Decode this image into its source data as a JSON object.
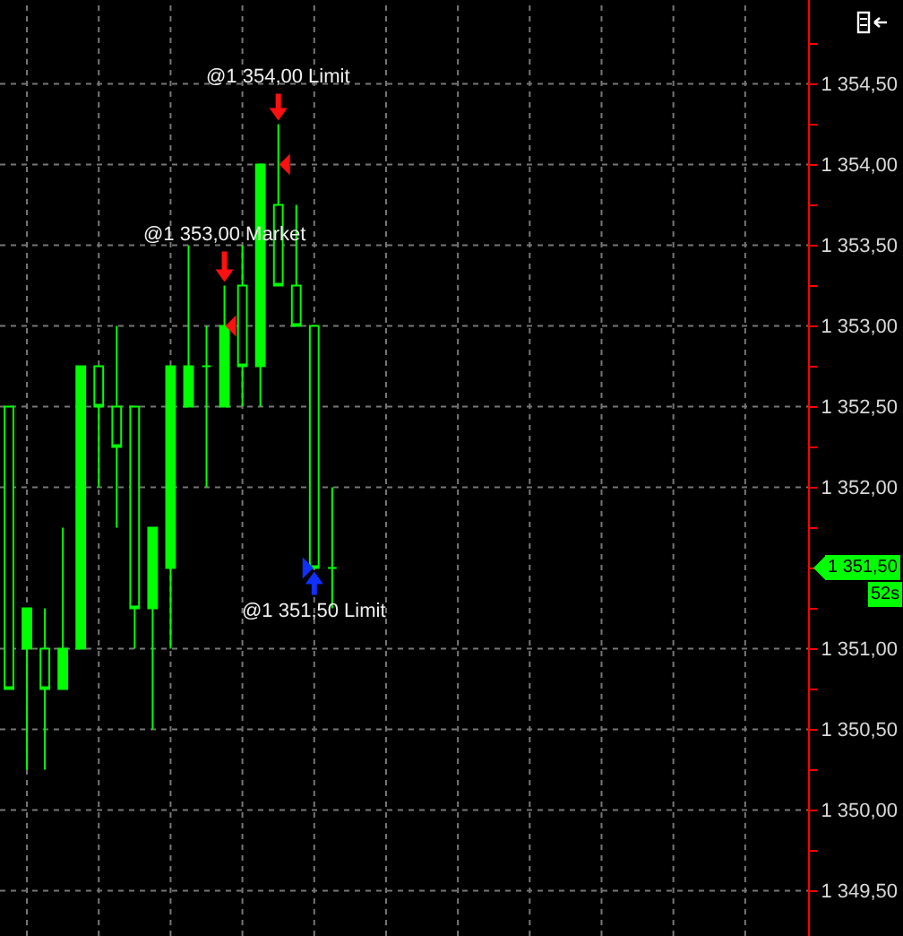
{
  "chart_data": {
    "type": "candlestick",
    "categories": [
      null,
      null,
      null,
      null,
      null,
      null,
      null,
      null,
      null,
      null,
      null,
      null,
      null,
      null,
      null,
      null,
      null,
      null,
      null,
      null,
      null,
      null,
      null,
      null,
      null,
      null,
      null,
      null,
      null,
      null,
      null,
      null,
      null,
      null,
      null,
      null,
      null,
      null,
      null,
      null,
      null,
      null,
      null,
      null,
      null
    ],
    "ohlc": [
      [
        1352.5,
        1352.5,
        1350.75,
        1350.75
      ],
      [
        1351.0,
        1351.25,
        1350.25,
        1351.25
      ],
      [
        1351.0,
        1351.25,
        1350.25,
        1350.75
      ],
      [
        1350.75,
        1351.75,
        1350.75,
        1351.0
      ],
      [
        1351.0,
        1352.75,
        1351.0,
        1352.75
      ],
      [
        1352.75,
        1352.75,
        1352.0,
        1352.5
      ],
      [
        1352.5,
        1353.0,
        1351.75,
        1352.25
      ],
      [
        1352.5,
        1352.5,
        1351.0,
        1351.25
      ],
      [
        1351.25,
        1351.75,
        1350.5,
        1351.75
      ],
      [
        1351.5,
        1352.75,
        1351.0,
        1352.75
      ],
      [
        1352.5,
        1353.5,
        1352.5,
        1352.75
      ],
      [
        1352.75,
        1353.0,
        1352.0,
        1352.75
      ],
      [
        1352.5,
        1353.25,
        1352.5,
        1353.0
      ],
      [
        1353.25,
        1353.5,
        1352.5,
        1352.75
      ],
      [
        1352.75,
        1354.0,
        1352.5,
        1354.0
      ],
      [
        1353.75,
        1354.25,
        1353.25,
        1353.25
      ],
      [
        1353.25,
        1353.75,
        1353.0,
        1353.0
      ],
      [
        1353.0,
        1353.0,
        1351.5,
        1351.5
      ],
      [
        1351.5,
        1352.0,
        1351.25,
        1351.5
      ],
      null,
      null,
      null,
      null,
      null,
      null,
      null,
      null,
      null,
      null,
      null,
      null,
      null,
      null,
      null,
      null,
      null,
      null,
      null,
      null,
      null,
      null,
      null,
      null,
      null,
      null
    ],
    "color": "#00ff00",
    "ylim": [
      1349.22,
      1355.02
    ],
    "yticks": [
      {
        "value": 1349.5,
        "label": "1 349,50"
      },
      {
        "value": 1349.75,
        "label": null
      },
      {
        "value": 1350.0,
        "label": "1 350,00"
      },
      {
        "value": 1350.25,
        "label": null
      },
      {
        "value": 1350.5,
        "label": "1 350,50"
      },
      {
        "value": 1350.75,
        "label": null
      },
      {
        "value": 1351.0,
        "label": "1 351,00"
      },
      {
        "value": 1351.25,
        "label": null
      },
      {
        "value": 1351.5,
        "label": null
      },
      {
        "value": 1351.75,
        "label": null
      },
      {
        "value": 1352.0,
        "label": "1 352,00"
      },
      {
        "value": 1352.25,
        "label": null
      },
      {
        "value": 1352.5,
        "label": "1 352,50"
      },
      {
        "value": 1352.75,
        "label": null
      },
      {
        "value": 1353.0,
        "label": "1 353,00"
      },
      {
        "value": 1353.25,
        "label": null
      },
      {
        "value": 1353.5,
        "label": "1 353,50"
      },
      {
        "value": 1353.75,
        "label": null
      },
      {
        "value": 1354.0,
        "label": "1 354,00"
      },
      {
        "value": 1354.25,
        "label": null
      },
      {
        "value": 1354.5,
        "label": "1 354,50"
      },
      {
        "value": 1354.75,
        "label": null
      }
    ],
    "grid": true,
    "tick_labels": "y",
    "annotations": [
      "@1 354,00 Limit",
      "@1 353,00 Market",
      "@1 351,50 Limit",
      "1 351,50",
      "52s"
    ]
  }
}
